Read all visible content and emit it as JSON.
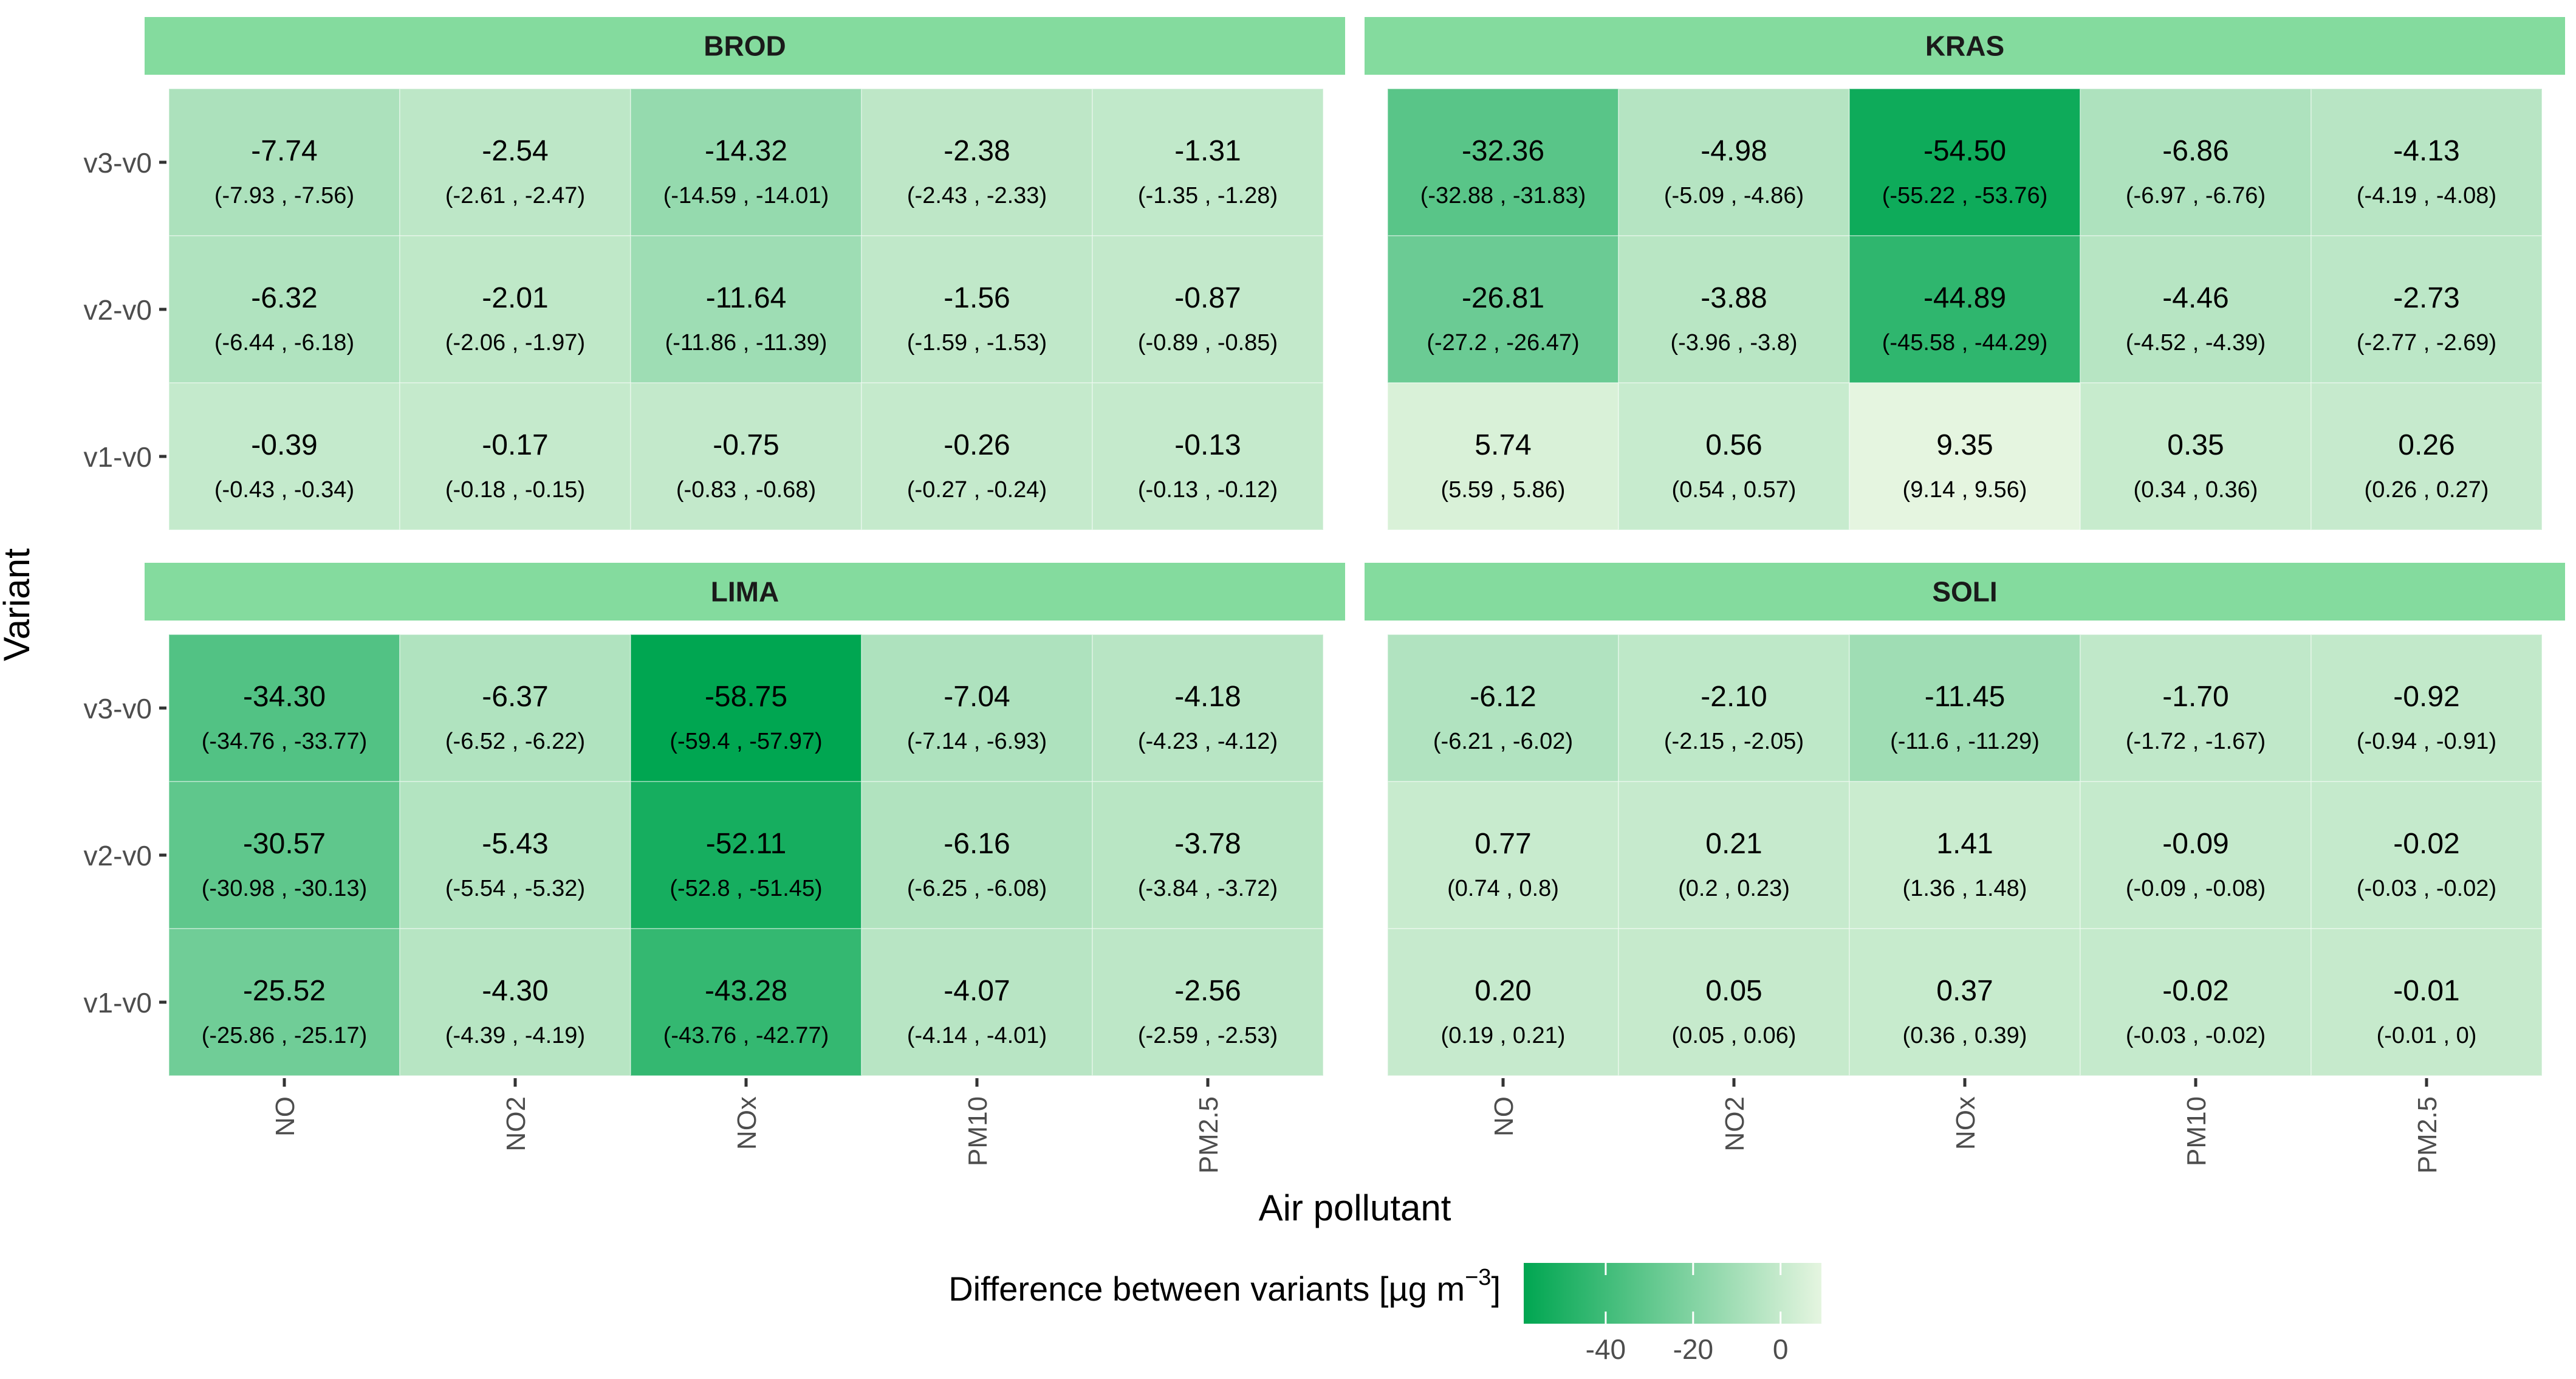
{
  "chart_data": {
    "type": "heatmap",
    "xlabel": "Air pollutant",
    "ylabel": "Variant",
    "categories": [
      "NO",
      "NO2",
      "NOx",
      "PM10",
      "PM2.5"
    ],
    "variants": [
      "v3-v0",
      "v2-v0",
      "v1-v0"
    ],
    "legend": {
      "title_prefix": "Difference between variants [µg m",
      "title_exponent": "−3",
      "title_suffix": "]",
      "ticks": [
        -40,
        -20,
        0
      ],
      "tick_labels": [
        "-40",
        "-20",
        "0"
      ],
      "range": [
        -58.75,
        9.35
      ],
      "low_color": "#00a651",
      "high_color": "#e5f5e0",
      "placement": "bottom"
    },
    "strip_color": "#84db9e",
    "panels": [
      {
        "name": "BROD",
        "rows": [
          {
            "variant": "v3-v0",
            "values": [
              -7.74,
              -2.54,
              -14.32,
              -2.38,
              -1.31
            ],
            "labels": [
              "-7.74",
              "-2.54",
              "-14.32",
              "-2.38",
              "-1.31"
            ],
            "ci": [
              "(-7.93 , -7.56)",
              "(-2.61 , -2.47)",
              "(-14.59 , -14.01)",
              "(-2.43 , -2.33)",
              "(-1.35 , -1.28)"
            ]
          },
          {
            "variant": "v2-v0",
            "values": [
              -6.32,
              -2.01,
              -11.64,
              -1.56,
              -0.87
            ],
            "labels": [
              "-6.32",
              "-2.01",
              "-11.64",
              "-1.56",
              "-0.87"
            ],
            "ci": [
              "(-6.44 , -6.18)",
              "(-2.06 , -1.97)",
              "(-11.86 , -11.39)",
              "(-1.59 , -1.53)",
              "(-0.89 , -0.85)"
            ]
          },
          {
            "variant": "v1-v0",
            "values": [
              -0.39,
              -0.17,
              -0.75,
              -0.26,
              -0.13
            ],
            "labels": [
              "-0.39",
              "-0.17",
              "-0.75",
              "-0.26",
              "-0.13"
            ],
            "ci": [
              "(-0.43 , -0.34)",
              "(-0.18 , -0.15)",
              "(-0.83 , -0.68)",
              "(-0.27 , -0.24)",
              "(-0.13 , -0.12)"
            ]
          }
        ]
      },
      {
        "name": "KRAS",
        "rows": [
          {
            "variant": "v3-v0",
            "values": [
              -32.36,
              -4.98,
              -54.5,
              -6.86,
              -4.13
            ],
            "labels": [
              "-32.36",
              "-4.98",
              "-54.50",
              "-6.86",
              "-4.13"
            ],
            "ci": [
              "(-32.88 , -31.83)",
              "(-5.09 , -4.86)",
              "(-55.22 , -53.76)",
              "(-6.97 , -6.76)",
              "(-4.19 , -4.08)"
            ]
          },
          {
            "variant": "v2-v0",
            "values": [
              -26.81,
              -3.88,
              -44.89,
              -4.46,
              -2.73
            ],
            "labels": [
              "-26.81",
              "-3.88",
              "-44.89",
              "-4.46",
              "-2.73"
            ],
            "ci": [
              "(-27.2 , -26.47)",
              "(-3.96 , -3.8)",
              "(-45.58 , -44.29)",
              "(-4.52 , -4.39)",
              "(-2.77 , -2.69)"
            ]
          },
          {
            "variant": "v1-v0",
            "values": [
              5.74,
              0.56,
              9.35,
              0.35,
              0.26
            ],
            "labels": [
              "5.74",
              "0.56",
              "9.35",
              "0.35",
              "0.26"
            ],
            "ci": [
              "(5.59 , 5.86)",
              "(0.54 , 0.57)",
              "(9.14 , 9.56)",
              "(0.34 , 0.36)",
              "(0.26 , 0.27)"
            ]
          }
        ]
      },
      {
        "name": "LIMA",
        "rows": [
          {
            "variant": "v3-v0",
            "values": [
              -34.3,
              -6.37,
              -58.75,
              -7.04,
              -4.18
            ],
            "labels": [
              "-34.30",
              "-6.37",
              "-58.75",
              "-7.04",
              "-4.18"
            ],
            "ci": [
              "(-34.76 , -33.77)",
              "(-6.52 , -6.22)",
              "(-59.4 , -57.97)",
              "(-7.14 , -6.93)",
              "(-4.23 , -4.12)"
            ]
          },
          {
            "variant": "v2-v0",
            "values": [
              -30.57,
              -5.43,
              -52.11,
              -6.16,
              -3.78
            ],
            "labels": [
              "-30.57",
              "-5.43",
              "-52.11",
              "-6.16",
              "-3.78"
            ],
            "ci": [
              "(-30.98 , -30.13)",
              "(-5.54 , -5.32)",
              "(-52.8 , -51.45)",
              "(-6.25 , -6.08)",
              "(-3.84 , -3.72)"
            ]
          },
          {
            "variant": "v1-v0",
            "values": [
              -25.52,
              -4.3,
              -43.28,
              -4.07,
              -2.56
            ],
            "labels": [
              "-25.52",
              "-4.30",
              "-43.28",
              "-4.07",
              "-2.56"
            ],
            "ci": [
              "(-25.86 , -25.17)",
              "(-4.39 , -4.19)",
              "(-43.76 , -42.77)",
              "(-4.14 , -4.01)",
              "(-2.59 , -2.53)"
            ]
          }
        ]
      },
      {
        "name": "SOLI",
        "rows": [
          {
            "variant": "v3-v0",
            "values": [
              -6.12,
              -2.1,
              -11.45,
              -1.7,
              -0.92
            ],
            "labels": [
              "-6.12",
              "-2.10",
              "-11.45",
              "-1.70",
              "-0.92"
            ],
            "ci": [
              "(-6.21 , -6.02)",
              "(-2.15 , -2.05)",
              "(-11.6 , -11.29)",
              "(-1.72 , -1.67)",
              "(-0.94 , -0.91)"
            ]
          },
          {
            "variant": "v2-v0",
            "values": [
              0.77,
              0.21,
              1.41,
              -0.09,
              -0.02
            ],
            "labels": [
              "0.77",
              "0.21",
              "1.41",
              "-0.09",
              "-0.02"
            ],
            "ci": [
              "(0.74 , 0.8)",
              "(0.2 , 0.23)",
              "(1.36 , 1.48)",
              "(-0.09 , -0.08)",
              "(-0.03 , -0.02)"
            ]
          },
          {
            "variant": "v1-v0",
            "values": [
              0.2,
              0.05,
              0.37,
              -0.02,
              -0.01
            ],
            "labels": [
              "0.20",
              "0.05",
              "0.37",
              "-0.02",
              "-0.01"
            ],
            "ci": [
              "(0.19 , 0.21)",
              "(0.05 , 0.06)",
              "(0.36 , 0.39)",
              "(-0.03 , -0.02)",
              "(-0.01 , 0)"
            ]
          }
        ]
      }
    ]
  }
}
